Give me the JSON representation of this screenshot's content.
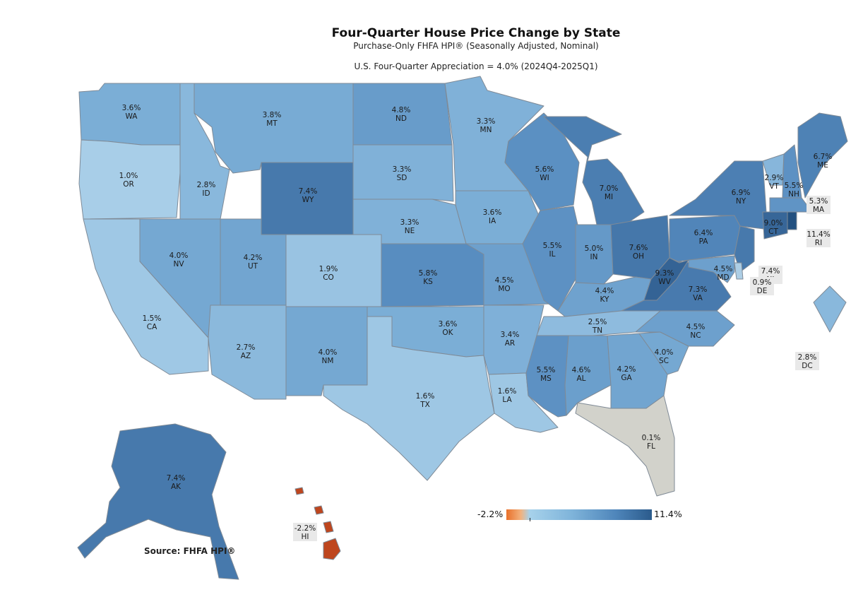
{
  "title": "Four-Quarter House Price Change by State",
  "subtitle": "Purchase-Only FHFA HPI® (Seasonally Adjusted, Nominal)",
  "appreciation": "U.S. Four-Quarter Appreciation = 4.0% (2024Q4-2025Q1)",
  "legend": {
    "min_label": "-2.2%",
    "max_label": "11.4%",
    "min": -2.2,
    "max": 11.4,
    "colors": {
      "low": "#e9702a",
      "mid": "#a7d2eb",
      "high": "#2b5b8c"
    }
  },
  "source": "Source:  FHFA HPI®",
  "states": [
    {
      "code": "WA",
      "value": 3.6,
      "label": "3.6%"
    },
    {
      "code": "OR",
      "value": 1.0,
      "label": "1.0%"
    },
    {
      "code": "CA",
      "value": 1.5,
      "label": "1.5%"
    },
    {
      "code": "ID",
      "value": 2.8,
      "label": "2.8%"
    },
    {
      "code": "NV",
      "value": 4.0,
      "label": "4.0%"
    },
    {
      "code": "MT",
      "value": 3.8,
      "label": "3.8%"
    },
    {
      "code": "WY",
      "value": 7.4,
      "label": "7.4%"
    },
    {
      "code": "UT",
      "value": 4.2,
      "label": "4.2%"
    },
    {
      "code": "CO",
      "value": 1.9,
      "label": "1.9%"
    },
    {
      "code": "AZ",
      "value": 2.7,
      "label": "2.7%"
    },
    {
      "code": "NM",
      "value": 4.0,
      "label": "4.0%"
    },
    {
      "code": "ND",
      "value": 4.8,
      "label": "4.8%"
    },
    {
      "code": "SD",
      "value": 3.3,
      "label": "3.3%"
    },
    {
      "code": "NE",
      "value": 3.3,
      "label": "3.3%"
    },
    {
      "code": "KS",
      "value": 5.8,
      "label": "5.8%"
    },
    {
      "code": "OK",
      "value": 3.6,
      "label": "3.6%"
    },
    {
      "code": "TX",
      "value": 1.6,
      "label": "1.6%"
    },
    {
      "code": "MN",
      "value": 3.3,
      "label": "3.3%"
    },
    {
      "code": "IA",
      "value": 3.6,
      "label": "3.6%"
    },
    {
      "code": "MO",
      "value": 4.5,
      "label": "4.5%"
    },
    {
      "code": "AR",
      "value": 3.4,
      "label": "3.4%"
    },
    {
      "code": "LA",
      "value": 1.6,
      "label": "1.6%"
    },
    {
      "code": "WI",
      "value": 5.6,
      "label": "5.6%"
    },
    {
      "code": "IL",
      "value": 5.5,
      "label": "5.5%"
    },
    {
      "code": "MI",
      "value": 7.0,
      "label": "7.0%"
    },
    {
      "code": "IN",
      "value": 5.0,
      "label": "5.0%"
    },
    {
      "code": "OH",
      "value": 7.6,
      "label": "7.6%"
    },
    {
      "code": "KY",
      "value": 4.4,
      "label": "4.4%"
    },
    {
      "code": "TN",
      "value": 2.5,
      "label": "2.5%"
    },
    {
      "code": "MS",
      "value": 5.5,
      "label": "5.5%"
    },
    {
      "code": "AL",
      "value": 4.6,
      "label": "4.6%"
    },
    {
      "code": "GA",
      "value": 4.2,
      "label": "4.2%"
    },
    {
      "code": "FL",
      "value": 0.1,
      "label": "0.1%"
    },
    {
      "code": "SC",
      "value": 4.0,
      "label": "4.0%"
    },
    {
      "code": "NC",
      "value": 4.5,
      "label": "4.5%"
    },
    {
      "code": "VA",
      "value": 7.3,
      "label": "7.3%"
    },
    {
      "code": "WV",
      "value": 9.3,
      "label": "9.3%"
    },
    {
      "code": "PA",
      "value": 6.4,
      "label": "6.4%"
    },
    {
      "code": "NY",
      "value": 6.9,
      "label": "6.9%"
    },
    {
      "code": "VT",
      "value": 2.9,
      "label": "2.9%"
    },
    {
      "code": "NH",
      "value": 5.5,
      "label": "5.5%"
    },
    {
      "code": "ME",
      "value": 6.7,
      "label": "6.7%"
    },
    {
      "code": "MA",
      "value": 5.3,
      "label": "5.3%"
    },
    {
      "code": "RI",
      "value": 11.4,
      "label": "11.4%"
    },
    {
      "code": "CT",
      "value": 9.0,
      "label": "9.0%"
    },
    {
      "code": "NJ",
      "value": 7.4,
      "label": "7.4%"
    },
    {
      "code": "DE",
      "value": 0.9,
      "label": "0.9%"
    },
    {
      "code": "MD",
      "value": 4.5,
      "label": "4.5%"
    },
    {
      "code": "DC",
      "value": 2.8,
      "label": "2.8%"
    },
    {
      "code": "AK",
      "value": 7.4,
      "label": "7.4%"
    },
    {
      "code": "HI",
      "value": -2.2,
      "label": "-2.2%"
    }
  ]
}
